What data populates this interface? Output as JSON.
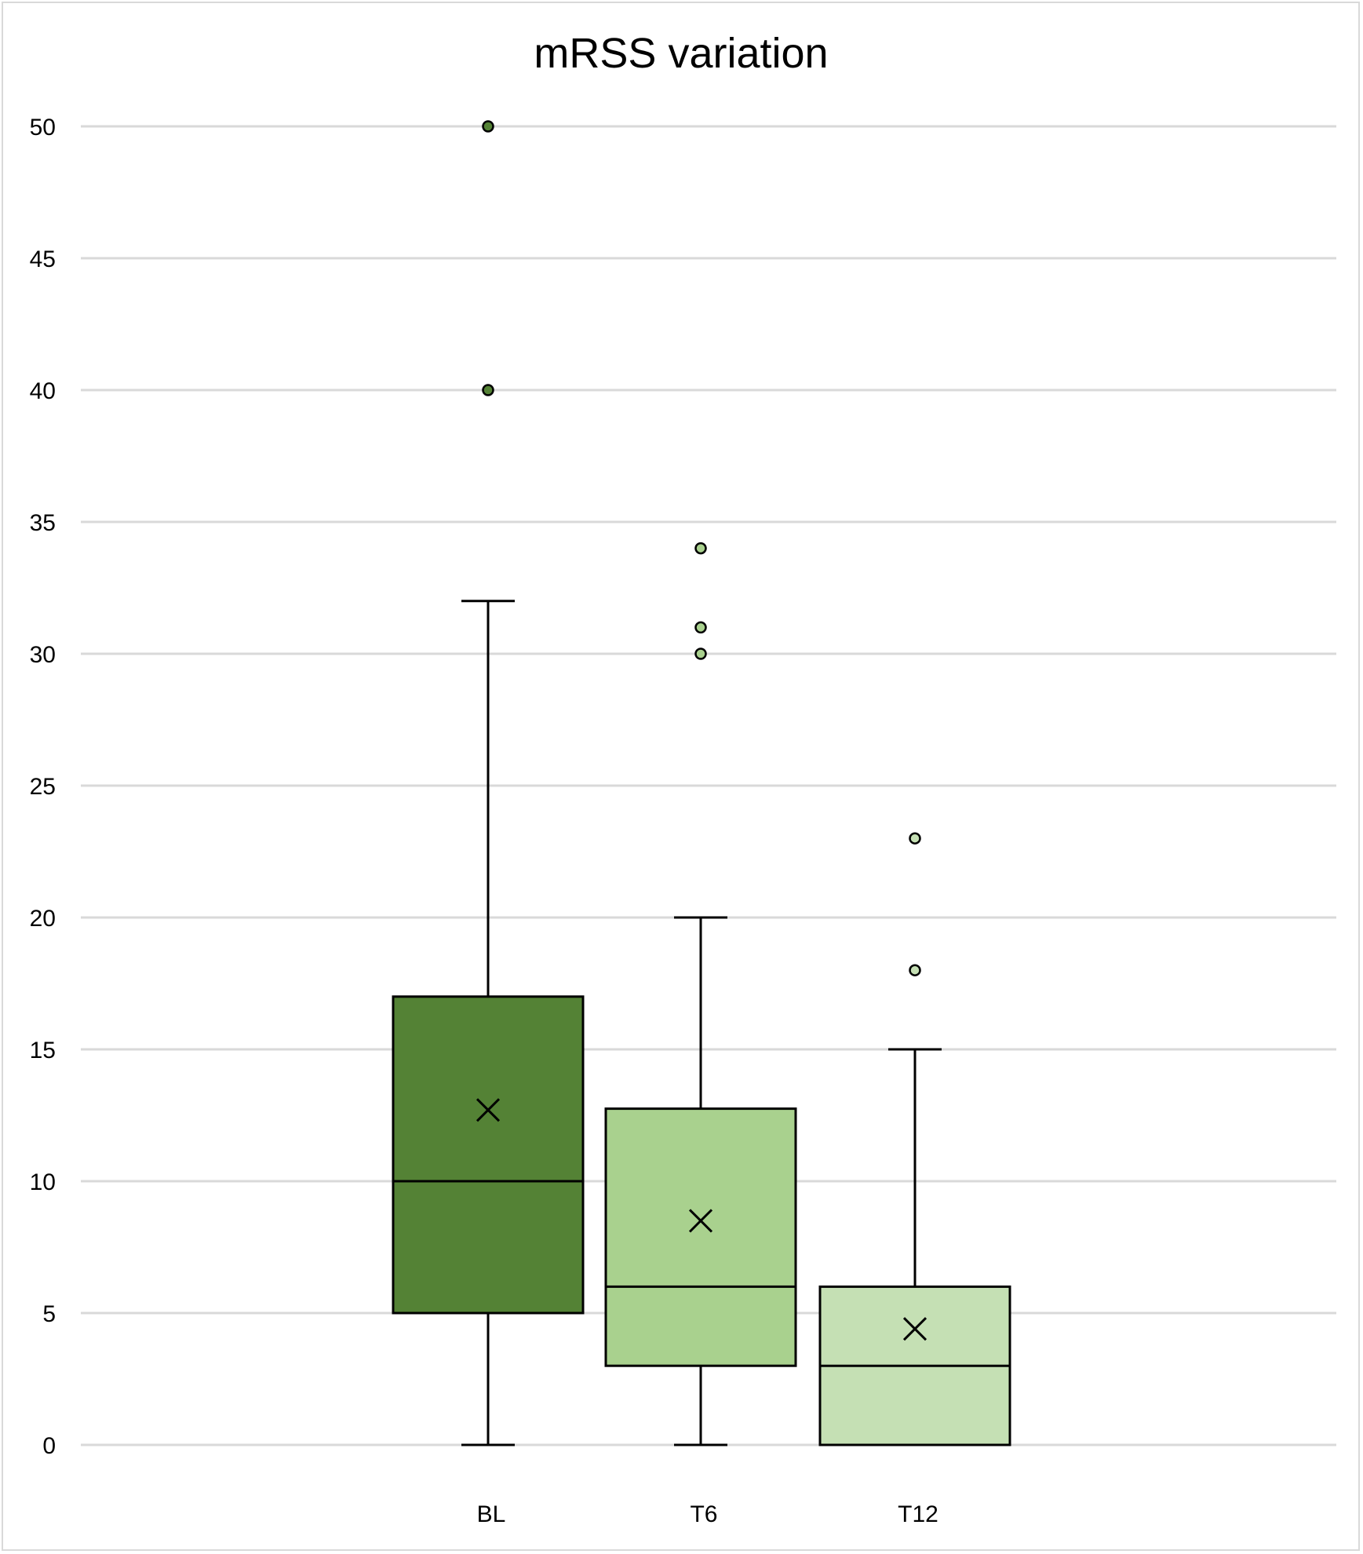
{
  "chart_data": {
    "type": "box",
    "title": "mRSS variation",
    "xlabel": "",
    "ylabel": "",
    "ylim": [
      0,
      50
    ],
    "yticks": [
      0,
      5,
      10,
      15,
      20,
      25,
      30,
      35,
      40,
      45,
      50
    ],
    "grid": true,
    "legend": "none",
    "categories": [
      "BL",
      "T6",
      "T12"
    ],
    "series": [
      {
        "category": "BL",
        "min": 0,
        "q1": 5,
        "median": 10,
        "q3": 17,
        "max": 32,
        "mean": 12.7,
        "outliers": [
          40,
          50
        ],
        "color": "#548235"
      },
      {
        "category": "T6",
        "min": 0,
        "q1": 3,
        "median": 6,
        "q3": 12.75,
        "max": 20,
        "mean": 8.5,
        "outliers": [
          30,
          31,
          34
        ],
        "color": "#a9d18e"
      },
      {
        "category": "T12",
        "min": 0,
        "q1": 0,
        "median": 3,
        "q3": 6,
        "max": 15,
        "mean": 4.4,
        "outliers": [
          18,
          23
        ],
        "color": "#c5e0b4"
      }
    ]
  }
}
